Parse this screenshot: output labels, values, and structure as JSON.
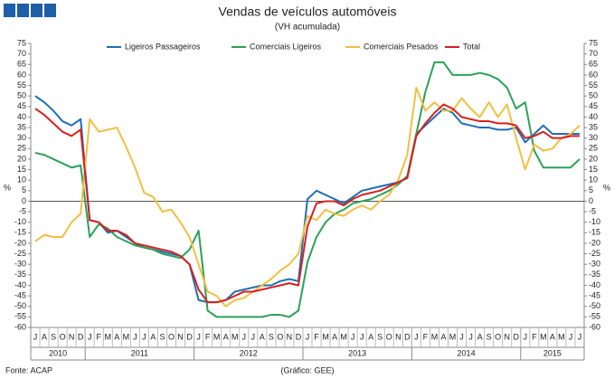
{
  "chart_data": {
    "type": "line",
    "title": "Vendas de veículos automóveis",
    "subtitle": "(VH acumulada)",
    "source": "Fonte: ACAP",
    "credit": "(Gráfico: GEE)",
    "y_label": "%",
    "y2_label": "%",
    "categories": [
      "J",
      "A",
      "S",
      "O",
      "N",
      "D",
      "J",
      "F",
      "M",
      "A",
      "M",
      "J",
      "J",
      "A",
      "S",
      "O",
      "N",
      "D",
      "J",
      "F",
      "M",
      "A",
      "M",
      "J",
      "J",
      "A",
      "S",
      "O",
      "N",
      "D",
      "J",
      "F",
      "M",
      "A",
      "M",
      "J",
      "J",
      "A",
      "S",
      "O",
      "N",
      "D",
      "J",
      "F",
      "M",
      "A",
      "M",
      "J",
      "J",
      "A",
      "S",
      "O",
      "N",
      "D",
      "J",
      "F",
      "M",
      "A",
      "M",
      "J",
      "J"
    ],
    "years": [
      "2010",
      "2011",
      "2012",
      "2013",
      "2014",
      "2015"
    ],
    "ylim": [
      -60,
      75
    ],
    "yticks": [
      -60,
      -55,
      -50,
      -45,
      -40,
      -35,
      -30,
      -25,
      -20,
      -15,
      -10,
      -5,
      0,
      5,
      10,
      15,
      20,
      25,
      30,
      35,
      40,
      45,
      50,
      55,
      60,
      65,
      70,
      75
    ],
    "y2lim": [
      -60,
      75
    ],
    "y2ticks": [
      -60,
      -55,
      -50,
      -45,
      -40,
      -35,
      -30,
      -25,
      -20,
      -15,
      -10,
      -5,
      0,
      5,
      10,
      15,
      20,
      25,
      30,
      35,
      40,
      45,
      50,
      55,
      60,
      65,
      70,
      75
    ],
    "series": [
      {
        "name": "Ligeiros Passageiros",
        "color": "#1f6fb5",
        "values": [
          50,
          47,
          43,
          38,
          36,
          39,
          -9,
          -10,
          -15,
          -14,
          -17,
          -20,
          -22,
          -23,
          -24,
          -25,
          -26,
          -30,
          -47,
          -48,
          -48,
          -47,
          -43,
          -42,
          -41,
          -40,
          -40,
          -38,
          -37,
          -38,
          1,
          5,
          3,
          1,
          -1,
          2,
          5,
          6,
          7,
          8,
          9,
          11,
          32,
          36,
          40,
          44,
          42,
          37,
          36,
          35,
          35,
          34,
          34,
          35,
          28,
          32,
          36,
          32,
          32,
          32,
          32
        ]
      },
      {
        "name": "Comerciais Ligeiros",
        "color": "#2ca05a",
        "values": [
          23,
          22,
          20,
          18,
          16,
          17,
          -17,
          -11,
          -13,
          -17,
          -19,
          -21,
          -22,
          -23,
          -25,
          -26,
          -27,
          -23,
          -14,
          -52,
          -55,
          -55,
          -55,
          -55,
          -55,
          -55,
          -54,
          -54,
          -55,
          -52,
          -29,
          -17,
          -10,
          -6,
          -4,
          -1,
          0,
          1,
          3,
          5,
          8,
          12,
          32,
          52,
          66,
          66,
          60,
          60,
          60,
          61,
          60,
          58,
          54,
          44,
          47,
          24,
          16,
          16,
          16,
          16,
          20
        ]
      },
      {
        "name": "Comerciais Pesados",
        "color": "#f0c040",
        "values": [
          -19,
          -16,
          -17,
          -17,
          -10,
          -6,
          39,
          33,
          34,
          35,
          26,
          16,
          4,
          2,
          -5,
          -4,
          -10,
          -17,
          -30,
          -43,
          -45,
          -50,
          -47,
          -46,
          -43,
          -40,
          -37,
          -33,
          -30,
          -25,
          -7,
          -9,
          -4,
          -6,
          -7,
          -4,
          -2,
          -4,
          0,
          3,
          10,
          22,
          54,
          43,
          47,
          43,
          43,
          49,
          44,
          40,
          47,
          40,
          46,
          30,
          15,
          27,
          24,
          25,
          30,
          32,
          36
        ]
      },
      {
        "name": "Total",
        "color": "#d62020",
        "values": [
          44,
          41,
          37,
          33,
          31,
          34,
          -9,
          -10,
          -14,
          -14,
          -16,
          -20,
          -21,
          -22,
          -23,
          -24,
          -26,
          -30,
          -42,
          -48,
          -48,
          -47,
          -45,
          -43,
          -43,
          -42,
          -41,
          -40,
          -39,
          -40,
          -12,
          -1,
          0,
          0,
          -2,
          1,
          3,
          4,
          5,
          7,
          9,
          11,
          31,
          37,
          42,
          46,
          44,
          40,
          39,
          38,
          38,
          37,
          37,
          36,
          30,
          31,
          33,
          30,
          30,
          31,
          31
        ]
      }
    ]
  }
}
